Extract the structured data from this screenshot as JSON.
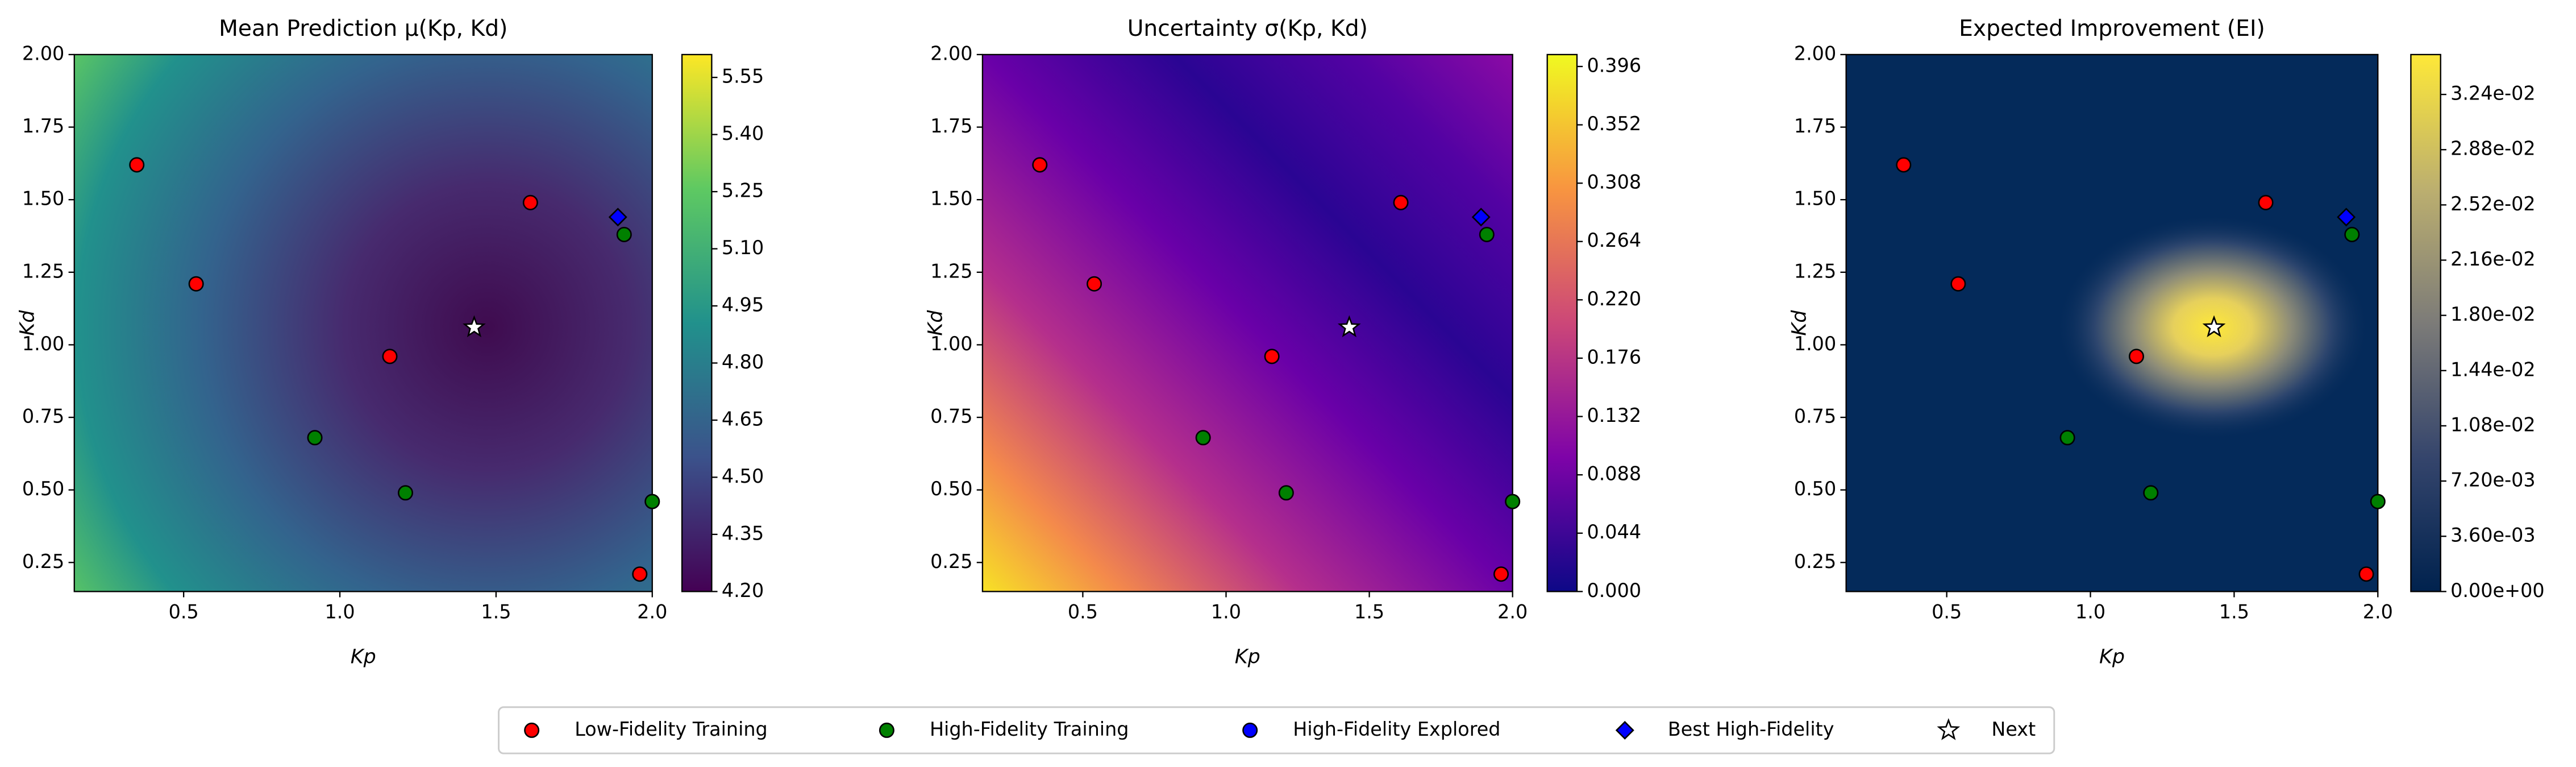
{
  "chart_data": [
    {
      "type": "heatmap",
      "title": "Mean Prediction μ(Kp, Kd)",
      "xlabel": "Kp",
      "ylabel": "Kd",
      "colormap": "viridis",
      "xlim": [
        0.15,
        2.0
      ],
      "ylim": [
        0.15,
        2.0
      ],
      "xticks": [
        0.5,
        {
          "value": 1,
          "label": "1.0"
        },
        1.5,
        {
          "value": 2,
          "label": "2.0"
        }
      ],
      "yticks": [
        0.25,
        {
          "value": 0.5,
          "label": "0.50"
        },
        0.75,
        {
          "value": 1,
          "label": "1.00"
        },
        1.25,
        {
          "value": 1.5,
          "label": "1.50"
        },
        1.75,
        {
          "value": 2,
          "label": "2.00"
        }
      ],
      "clim": [
        4.2,
        5.61
      ],
      "cticks": [
        {
          "value": 4.2,
          "label": "4.20"
        },
        4.35,
        {
          "value": 4.5,
          "label": "4.50"
        },
        4.65,
        {
          "value": 4.8,
          "label": "4.80"
        },
        4.95,
        {
          "value": 5.1,
          "label": "5.10"
        },
        5.25,
        {
          "value": 5.4,
          "label": "5.40"
        },
        5.55
      ],
      "series": [
        {
          "name": "Low-Fidelity Training",
          "color": "#ff0000",
          "marker": "circle",
          "x": [
            0.35,
            0.54,
            1.16,
            1.61,
            1.96
          ],
          "y": [
            1.62,
            1.21,
            0.96,
            1.49,
            0.21
          ]
        },
        {
          "name": "High-Fidelity Training",
          "color": "#008000",
          "marker": "circle",
          "x": [
            0.92,
            1.21,
            1.91,
            2.0
          ],
          "y": [
            0.68,
            0.49,
            1.38,
            0.46
          ]
        },
        {
          "name": "High-Fidelity Explored",
          "color": "#0000ff",
          "marker": "circle",
          "x": [],
          "y": []
        },
        {
          "name": "Best High-Fidelity",
          "color": "#0000ff",
          "marker": "diamond",
          "x": [
            1.89
          ],
          "y": [
            1.44
          ]
        },
        {
          "name": "Next",
          "color": "#ffffff",
          "marker": "star",
          "x": [
            1.43
          ],
          "y": [
            1.06
          ]
        }
      ]
    },
    {
      "type": "heatmap",
      "title": "Uncertainty σ(Kp, Kd)",
      "xlabel": "Kp",
      "ylabel": "Kd",
      "colormap": "plasma",
      "xlim": [
        0.15,
        2.0
      ],
      "ylim": [
        0.15,
        2.0
      ],
      "xticks": [
        0.5,
        {
          "value": 1,
          "label": "1.0"
        },
        1.5,
        {
          "value": 2,
          "label": "2.0"
        }
      ],
      "yticks": [
        0.25,
        {
          "value": 0.5,
          "label": "0.50"
        },
        0.75,
        {
          "value": 1,
          "label": "1.00"
        },
        1.25,
        {
          "value": 1.5,
          "label": "1.50"
        },
        1.75,
        {
          "value": 2,
          "label": "2.00"
        }
      ],
      "clim": [
        0,
        0.405
      ],
      "cticks": [
        {
          "value": 0,
          "label": "0.000"
        },
        0.044,
        0.088,
        0.132,
        0.176,
        {
          "value": 0.22,
          "label": "0.220"
        },
        0.264,
        0.308,
        0.352,
        0.396
      ]
    },
    {
      "type": "heatmap",
      "title": "Expected Improvement (EI)",
      "xlabel": "Kp",
      "ylabel": "Kd",
      "colormap": "cividis",
      "xlim": [
        0.15,
        2.0
      ],
      "ylim": [
        0.15,
        2.0
      ],
      "xticks": [
        0.5,
        {
          "value": 1,
          "label": "1.0"
        },
        1.5,
        {
          "value": 2,
          "label": "2.0"
        }
      ],
      "yticks": [
        0.25,
        {
          "value": 0.5,
          "label": "0.50"
        },
        0.75,
        {
          "value": 1,
          "label": "1.00"
        },
        1.25,
        {
          "value": 1.5,
          "label": "1.50"
        },
        1.75,
        {
          "value": 2,
          "label": "2.00"
        }
      ],
      "clim": [
        0,
        0.035
      ],
      "cticks": [
        {
          "value": 0,
          "label": "0.00e+00"
        },
        {
          "value": 0.0036,
          "label": "3.60e-03"
        },
        {
          "value": 0.0072,
          "label": "7.20e-03"
        },
        {
          "value": 0.0108,
          "label": "1.08e-02"
        },
        {
          "value": 0.0144,
          "label": "1.44e-02"
        },
        {
          "value": 0.018,
          "label": "1.80e-02"
        },
        {
          "value": 0.0216,
          "label": "2.16e-02"
        },
        {
          "value": 0.0252,
          "label": "2.52e-02"
        },
        {
          "value": 0.0288,
          "label": "2.88e-02"
        },
        {
          "value": 0.0324,
          "label": "3.24e-02"
        }
      ]
    }
  ]
}
